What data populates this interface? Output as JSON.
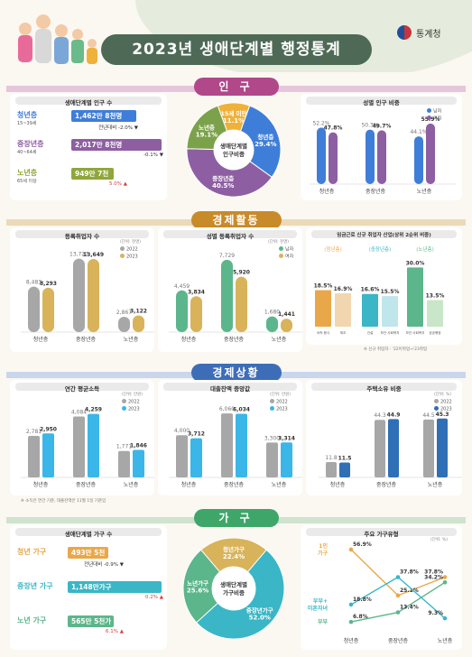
{
  "header": {
    "title": "2023년 생애단계별 행정통계",
    "org": "통계청"
  },
  "sections": {
    "population": "인 구",
    "economy": "경제활동",
    "economic_status": "경제상황",
    "household": "가 구"
  },
  "population": {
    "by_stage": {
      "title": "생애단계별 인구 수",
      "rows": [
        {
          "name": "청년층",
          "range": "15~39세",
          "value": "1,462만 8천명",
          "change_prefix": "전년대비",
          "change": "-2.0%",
          "color": "#3f7ed8",
          "fill": 0.72
        },
        {
          "name": "중장년층",
          "range": "40~64세",
          "value": "2,017만 8천명",
          "change_prefix": "",
          "change": "-0.1%",
          "color": "#8e5ea2",
          "fill": 1.0
        },
        {
          "name": "노년층",
          "range": "65세 이상",
          "value": "949만 7천명",
          "change_prefix": "",
          "change": "5.0%",
          "color": "#8fa63a",
          "fill": 0.47
        }
      ]
    },
    "composition": {
      "title": "생애단계별 인구비중",
      "slices": [
        {
          "label": "15세 미만",
          "value": 11.1,
          "color": "#f0b13a"
        },
        {
          "label": "청년층",
          "value": 29.4,
          "color": "#3f7ed8"
        },
        {
          "label": "중장년층",
          "value": 40.5,
          "color": "#8e5ea2"
        },
        {
          "label": "노년층",
          "value": 19.1,
          "color": "#7ba24a"
        }
      ]
    },
    "sex": {
      "title": "성별 인구 비중",
      "legend": [
        "남자",
        "여자"
      ],
      "colors": [
        "#3f7ed8",
        "#8e5ea2"
      ],
      "categories": [
        "청년층",
        "중장년층",
        "노년층"
      ],
      "male": [
        52.2,
        50.3,
        44.1
      ],
      "female": [
        47.8,
        49.7,
        55.9
      ]
    }
  },
  "economy": {
    "workers": {
      "title": "등록취업자 수",
      "unit": "(단위: 천명)",
      "legend": [
        "2022",
        "2023"
      ],
      "colors": [
        "#a7a7a7",
        "#d8b35a"
      ],
      "categories": [
        "청년층",
        "중장년층",
        "노년층"
      ],
      "y2022": [
        8483,
        13727,
        2867
      ],
      "y2023": [
        8293,
        13649,
        3122
      ],
      "labels2022": [
        "8,483",
        "13,727",
        "2,867"
      ],
      "labels2023": [
        "8,293",
        "13,649",
        "3,122"
      ]
    },
    "sex_workers": {
      "title": "성별 등록취업자 수",
      "unit": "(단위: 천명)",
      "legend": [
        "남자",
        "여자"
      ],
      "colors": [
        "#5cb68b",
        "#d8b35a"
      ],
      "categories": [
        "청년층",
        "중장년층",
        "노년층"
      ],
      "male": [
        4459,
        7729,
        1680
      ],
      "female": [
        3834,
        5920,
        1441
      ],
      "labels_m": [
        "4,459",
        "7,729",
        "1,680"
      ],
      "labels_f": [
        "3,834",
        "5,920",
        "1,441"
      ]
    },
    "industry": {
      "title": "임금근로 신규 취업자 산업(상위 2순위 비중)",
      "groups": [
        "(청년층)",
        "(중장년층)",
        "(노년층)"
      ],
      "categories": [
        "숙박·음식",
        "제조",
        "건설",
        "보건·사회복지",
        "보건·사회복지",
        "공공행정"
      ],
      "values": [
        18.5,
        16.9,
        16.6,
        15.5,
        30.0,
        13.5
      ],
      "labels": [
        "18.5%",
        "16.9%",
        "16.6%",
        "15.5%",
        "30.0%",
        "13.5%"
      ],
      "colors": [
        "#e8a84a",
        "#f1d6b0",
        "#3ab6c6",
        "#bfe6ea",
        "#5cb68b",
        "#c9e6c9"
      ],
      "note": "※ 신규 취업자 : '22미취업→'23취업"
    }
  },
  "economic_status": {
    "income": {
      "title": "연간 평균소득",
      "unit": "(단위: 만원)",
      "legend": [
        "2022",
        "2023"
      ],
      "colors": [
        "#a7a7a7",
        "#3ab6e8"
      ],
      "categories": [
        "청년층",
        "중장년층",
        "노년층"
      ],
      "y2022": [
        2781,
        4084,
        1771
      ],
      "y2023": [
        2950,
        4259,
        1846
      ],
      "labels2022": [
        "2,781",
        "4,084",
        "1,771"
      ],
      "labels2023": [
        "2,950",
        "4,259",
        "1,846"
      ]
    },
    "debt": {
      "title": "대출잔액 중앙값",
      "unit": "(단위: 만원)",
      "legend": [
        "2022",
        "2023"
      ],
      "colors": [
        "#a7a7a7",
        "#3ab6e8"
      ],
      "categories": [
        "청년층",
        "중장년층",
        "노년층"
      ],
      "y2022": [
        4000,
        6060,
        3300
      ],
      "y2023": [
        3712,
        6034,
        3314
      ],
      "labels2022": [
        "4,000",
        "6,060",
        "3,300"
      ],
      "labels2023": [
        "3,712",
        "6,034",
        "3,314"
      ]
    },
    "housing": {
      "title": "주택소유 비중",
      "unit": "(단위: %)",
      "legend": [
        "2022",
        "2023"
      ],
      "colors": [
        "#a7a7a7",
        "#2f6fb5"
      ],
      "categories": [
        "청년층",
        "중장년층",
        "노년층"
      ],
      "y2022": [
        11.8,
        44.3,
        44.5
      ],
      "y2023": [
        11.5,
        44.9,
        45.3
      ],
      "labels2022": [
        "11.8",
        "44.3",
        "44.5"
      ],
      "labels2023": [
        "11.5",
        "44.9",
        "45.3"
      ]
    },
    "note": "※ 소득은 연간 기준, 대출잔액은 11월 1일 기준임"
  },
  "household": {
    "count": {
      "title": "생애단계별 가구 수",
      "rows": [
        {
          "name": "청년 가구",
          "value": "493만 5천가구",
          "change_prefix": "전년대비",
          "change": "-0.9%",
          "color": "#e8a84a",
          "fill": 0.43
        },
        {
          "name": "중장년 가구",
          "value": "1,148만가구",
          "change_prefix": "",
          "change": "0.2%",
          "color": "#3ab6c6",
          "fill": 1.0
        },
        {
          "name": "노년 가구",
          "value": "565만 5천가구",
          "change_prefix": "",
          "change": "6.1%",
          "color": "#5cb68b",
          "fill": 0.49
        }
      ]
    },
    "composition": {
      "title": "생애단계별 가구비중",
      "slices": [
        {
          "label": "청년가구",
          "value": 22.4,
          "color": "#d8b35a"
        },
        {
          "label": "중장년가구",
          "value": 52.0,
          "color": "#3ab6c6"
        },
        {
          "label": "노년가구",
          "value": 25.6,
          "color": "#5cb68b"
        }
      ]
    },
    "types": {
      "title": "주요 가구유형",
      "unit": "(단위: %)",
      "categories": [
        "청년층",
        "중장년층",
        "노년층"
      ],
      "series": [
        {
          "name": "1인 가구",
          "values": [
            56.9,
            25.1,
            37.8
          ],
          "labels": [
            "56.9%",
            "25.1%",
            "37.8%"
          ],
          "color": "#e8a84a"
        },
        {
          "name": "부부+ 미혼자녀",
          "values": [
            18.8,
            37.8,
            9.3
          ],
          "labels": [
            "18.8%",
            "37.8%",
            "9.3%"
          ],
          "color": "#3ab6c6"
        },
        {
          "name": "부부",
          "values": [
            6.8,
            13.4,
            34.2
          ],
          "labels": [
            "6.8%",
            "13.4%",
            "34.2%"
          ],
          "color": "#5cb68b"
        }
      ]
    }
  },
  "chart_data": [
    {
      "type": "pie",
      "title": "생애단계별 인구비중",
      "categories": [
        "15세 미만",
        "청년층",
        "중장년층",
        "노년층"
      ],
      "values": [
        11.1,
        29.4,
        40.5,
        19.1
      ]
    },
    {
      "type": "bar",
      "title": "성별 인구 비중",
      "categories": [
        "청년층",
        "중장년층",
        "노년층"
      ],
      "series": [
        {
          "name": "남자",
          "values": [
            52.2,
            50.3,
            44.1
          ]
        },
        {
          "name": "여자",
          "values": [
            47.8,
            49.7,
            55.9
          ]
        }
      ]
    },
    {
      "type": "bar",
      "title": "등록취업자 수",
      "categories": [
        "청년층",
        "중장년층",
        "노년층"
      ],
      "series": [
        {
          "name": "2022",
          "values": [
            8483,
            13727,
            2867
          ]
        },
        {
          "name": "2023",
          "values": [
            8293,
            13649,
            3122
          ]
        }
      ]
    },
    {
      "type": "bar",
      "title": "성별 등록취업자 수",
      "categories": [
        "청년층",
        "중장년층",
        "노년층"
      ],
      "series": [
        {
          "name": "남자",
          "values": [
            4459,
            7729,
            1680
          ]
        },
        {
          "name": "여자",
          "values": [
            3834,
            5920,
            1441
          ]
        }
      ]
    },
    {
      "type": "bar",
      "title": "임금근로 신규 취업자 산업(상위 2순위 비중)",
      "categories": [
        "숙박·음식",
        "제조",
        "건설",
        "보건·사회복지",
        "보건·사회복지",
        "공공행정"
      ],
      "values": [
        18.5,
        16.9,
        16.6,
        15.5,
        30.0,
        13.5
      ]
    },
    {
      "type": "bar",
      "title": "연간 평균소득",
      "categories": [
        "청년층",
        "중장년층",
        "노년층"
      ],
      "series": [
        {
          "name": "2022",
          "values": [
            2781,
            4084,
            1771
          ]
        },
        {
          "name": "2023",
          "values": [
            2950,
            4259,
            1846
          ]
        }
      ]
    },
    {
      "type": "bar",
      "title": "대출잔액 중앙값",
      "categories": [
        "청년층",
        "중장년층",
        "노년층"
      ],
      "series": [
        {
          "name": "2022",
          "values": [
            4000,
            6060,
            3300
          ]
        },
        {
          "name": "2023",
          "values": [
            3712,
            6034,
            3314
          ]
        }
      ]
    },
    {
      "type": "bar",
      "title": "주택소유 비중",
      "categories": [
        "청년층",
        "중장년층",
        "노년층"
      ],
      "series": [
        {
          "name": "2022",
          "values": [
            11.8,
            44.3,
            44.5
          ]
        },
        {
          "name": "2023",
          "values": [
            11.5,
            44.9,
            45.3
          ]
        }
      ]
    },
    {
      "type": "pie",
      "title": "생애단계별 가구비중",
      "categories": [
        "청년가구",
        "중장년가구",
        "노년가구"
      ],
      "values": [
        22.4,
        52.0,
        25.6
      ]
    },
    {
      "type": "line",
      "title": "주요 가구유형",
      "categories": [
        "청년층",
        "중장년층",
        "노년층"
      ],
      "series": [
        {
          "name": "1인 가구",
          "values": [
            56.9,
            25.1,
            37.8
          ]
        },
        {
          "name": "부부+ 미혼자녀",
          "values": [
            18.8,
            37.8,
            9.3
          ]
        },
        {
          "name": "부부",
          "values": [
            6.8,
            13.4,
            34.2
          ]
        }
      ]
    }
  ]
}
